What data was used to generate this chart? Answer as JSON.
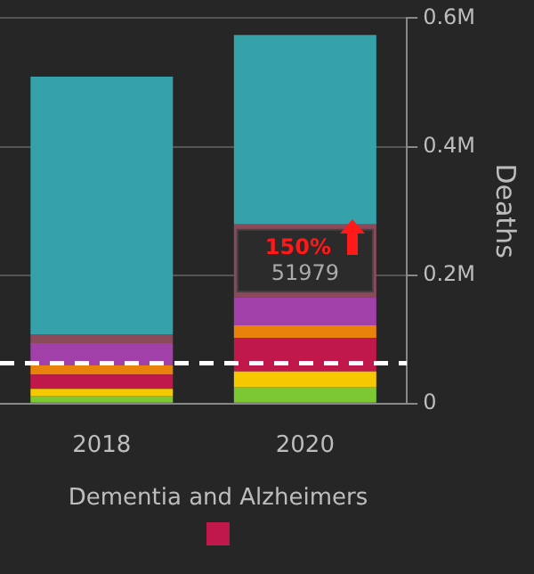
{
  "chart_data": {
    "type": "bar",
    "stacked": true,
    "categories": [
      "2018",
      "2020"
    ],
    "series": [
      {
        "color": "#7cc832",
        "values": [
          11000,
          25000
        ]
      },
      {
        "color": "#f5c800",
        "values": [
          12000,
          25000
        ]
      },
      {
        "name": "Dementia and Alzheimers",
        "color": "#c0184b",
        "values": [
          22000,
          51979
        ],
        "value_labels": [
          null,
          "51979"
        ]
      },
      {
        "color": "#e8820a",
        "values": [
          15000,
          20000
        ]
      },
      {
        "color": "#a040a8",
        "values": [
          34000,
          44000
        ]
      },
      {
        "color": "#8a4a5a",
        "values": [
          14000,
          113000
        ]
      },
      {
        "color": "#35a2aa",
        "values": [
          401000,
          295000
        ]
      }
    ],
    "ylabel": "Deaths",
    "ylim": [
      0,
      600000
    ],
    "yticks": [
      0,
      {
        "value": 200000,
        "label": "0.2M"
      },
      {
        "value": 400000,
        "label": "0.4M"
      },
      {
        "value": 600000,
        "label": "0.6M"
      }
    ],
    "grid": "y",
    "legend": "bottom",
    "ref_lines": [
      {
        "axis": "y",
        "value": 63000,
        "color": "#ffffff",
        "line_style": "dashed"
      }
    ],
    "annotations": [
      "150%"
    ]
  }
}
